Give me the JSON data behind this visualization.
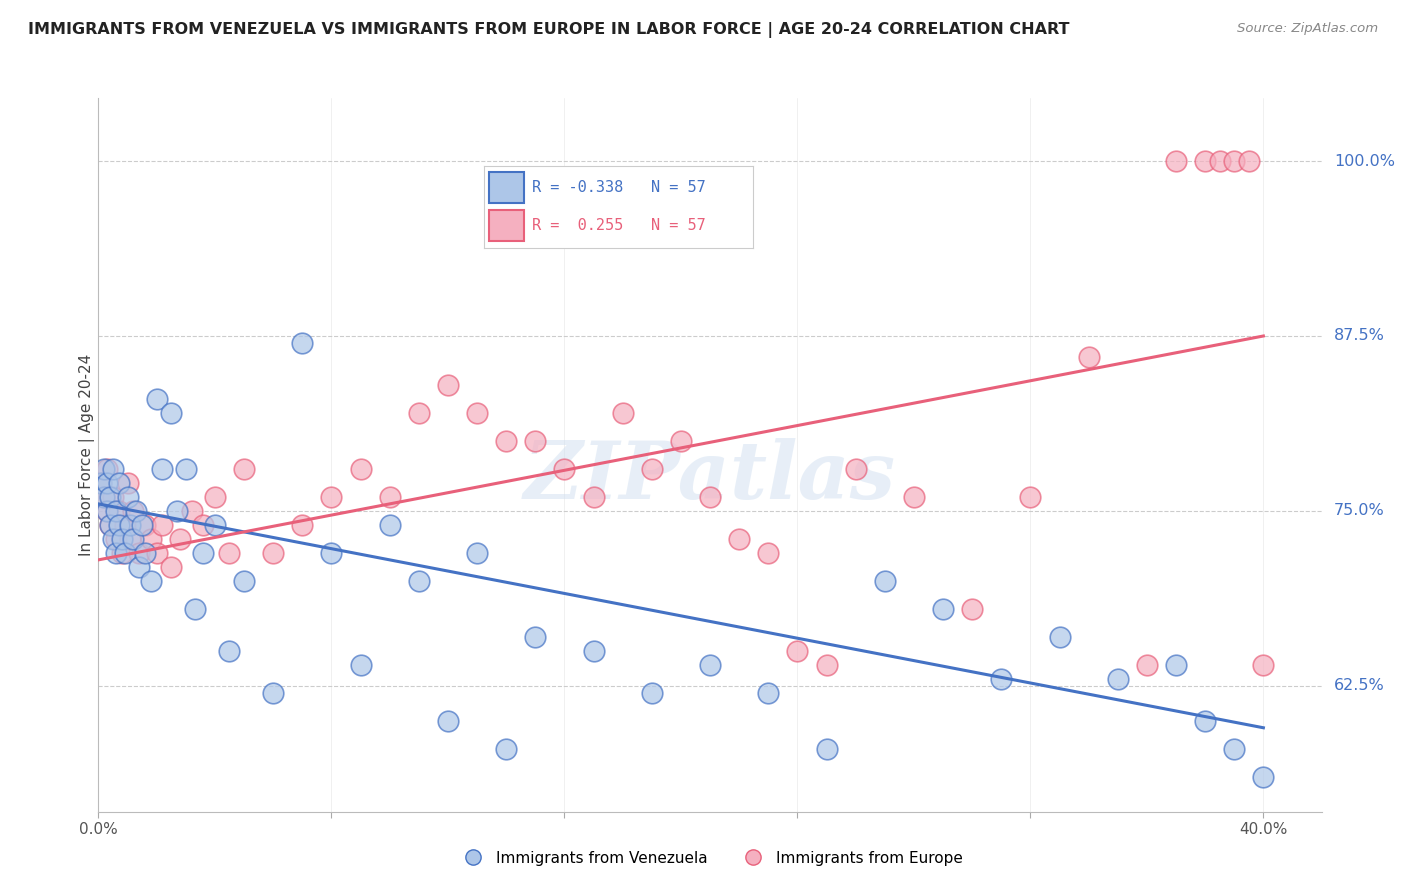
{
  "title": "IMMIGRANTS FROM VENEZUELA VS IMMIGRANTS FROM EUROPE IN LABOR FORCE | AGE 20-24 CORRELATION CHART",
  "source": "Source: ZipAtlas.com",
  "ylabel": "In Labor Force | Age 20-24",
  "xlim": [
    0.0,
    0.42
  ],
  "ylim": [
    0.535,
    1.045
  ],
  "yticks": [
    0.625,
    0.75,
    0.875,
    1.0
  ],
  "ytick_labels": [
    "62.5%",
    "75.0%",
    "87.5%",
    "100.0%"
  ],
  "xtick_positions": [
    0.0,
    0.08,
    0.16,
    0.24,
    0.32,
    0.4
  ],
  "xtick_labels_show": [
    "0.0%",
    "",
    "",
    "",
    "",
    "40.0%"
  ],
  "r_venezuela": -0.338,
  "r_europe": 0.255,
  "n": 57,
  "venezuela_color": "#adc6e8",
  "europe_color": "#f5b0c0",
  "line_venezuela_color": "#4472c4",
  "line_europe_color": "#e8607a",
  "watermark": "ZIPatlas",
  "legend_label_venezuela": "Immigrants from Venezuela",
  "legend_label_europe": "Immigrants from Europe",
  "line_ven_x0": 0.0,
  "line_ven_y0": 0.755,
  "line_ven_x1": 0.4,
  "line_ven_y1": 0.595,
  "line_eur_x0": 0.0,
  "line_eur_y0": 0.715,
  "line_eur_x1": 0.4,
  "line_eur_y1": 0.875,
  "venezuela_x": [
    0.001,
    0.002,
    0.002,
    0.003,
    0.003,
    0.004,
    0.004,
    0.005,
    0.005,
    0.006,
    0.006,
    0.007,
    0.007,
    0.008,
    0.009,
    0.01,
    0.011,
    0.012,
    0.013,
    0.014,
    0.015,
    0.016,
    0.018,
    0.02,
    0.022,
    0.025,
    0.027,
    0.03,
    0.033,
    0.036,
    0.04,
    0.045,
    0.05,
    0.06,
    0.07,
    0.08,
    0.09,
    0.1,
    0.11,
    0.12,
    0.13,
    0.14,
    0.15,
    0.17,
    0.19,
    0.21,
    0.23,
    0.25,
    0.27,
    0.29,
    0.31,
    0.33,
    0.35,
    0.37,
    0.38,
    0.39,
    0.4
  ],
  "venezuela_y": [
    0.77,
    0.76,
    0.78,
    0.75,
    0.77,
    0.74,
    0.76,
    0.73,
    0.78,
    0.72,
    0.75,
    0.74,
    0.77,
    0.73,
    0.72,
    0.76,
    0.74,
    0.73,
    0.75,
    0.71,
    0.74,
    0.72,
    0.7,
    0.83,
    0.78,
    0.82,
    0.75,
    0.78,
    0.68,
    0.72,
    0.74,
    0.65,
    0.7,
    0.62,
    0.87,
    0.72,
    0.64,
    0.74,
    0.7,
    0.6,
    0.72,
    0.58,
    0.66,
    0.65,
    0.62,
    0.64,
    0.62,
    0.58,
    0.7,
    0.68,
    0.63,
    0.66,
    0.63,
    0.64,
    0.6,
    0.58,
    0.56
  ],
  "europe_x": [
    0.001,
    0.002,
    0.003,
    0.003,
    0.004,
    0.005,
    0.006,
    0.007,
    0.008,
    0.009,
    0.01,
    0.011,
    0.012,
    0.014,
    0.016,
    0.018,
    0.02,
    0.022,
    0.025,
    0.028,
    0.032,
    0.036,
    0.04,
    0.045,
    0.05,
    0.06,
    0.07,
    0.08,
    0.09,
    0.1,
    0.11,
    0.12,
    0.13,
    0.14,
    0.15,
    0.16,
    0.17,
    0.18,
    0.19,
    0.2,
    0.21,
    0.22,
    0.23,
    0.24,
    0.25,
    0.26,
    0.28,
    0.3,
    0.32,
    0.34,
    0.36,
    0.37,
    0.38,
    0.385,
    0.39,
    0.395,
    0.4
  ],
  "europe_y": [
    0.77,
    0.76,
    0.75,
    0.78,
    0.74,
    0.76,
    0.73,
    0.75,
    0.72,
    0.74,
    0.77,
    0.73,
    0.75,
    0.72,
    0.74,
    0.73,
    0.72,
    0.74,
    0.71,
    0.73,
    0.75,
    0.74,
    0.76,
    0.72,
    0.78,
    0.72,
    0.74,
    0.76,
    0.78,
    0.76,
    0.82,
    0.84,
    0.82,
    0.8,
    0.8,
    0.78,
    0.76,
    0.82,
    0.78,
    0.8,
    0.76,
    0.73,
    0.72,
    0.65,
    0.64,
    0.78,
    0.76,
    0.68,
    0.76,
    0.86,
    0.64,
    1.0,
    1.0,
    1.0,
    1.0,
    1.0,
    0.64
  ]
}
